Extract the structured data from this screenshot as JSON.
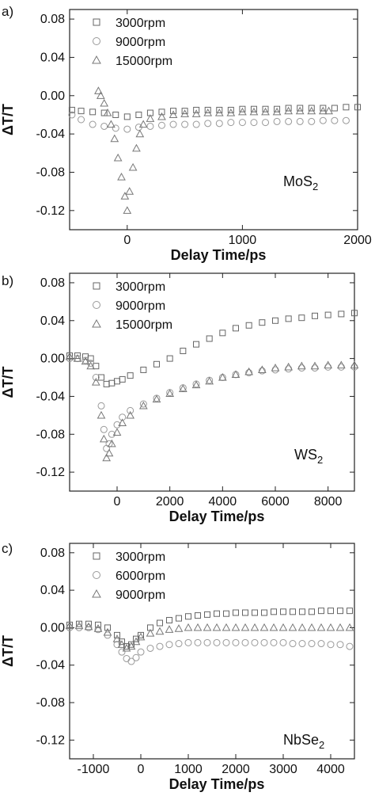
{
  "chart_data": [
    {
      "type": "scatter",
      "panel_label": "a)",
      "material": {
        "base": "MoS",
        "sub": "2"
      },
      "xlabel": "Delay Time/ps",
      "ylabel": "ΔT/T",
      "xlim": [
        -500,
        2000
      ],
      "ylim": [
        -0.14,
        0.09
      ],
      "x_ticks": [
        0,
        1000,
        2000
      ],
      "x_tick_labels": [
        "0",
        "1000",
        "2000"
      ],
      "y_ticks": [
        0.08,
        0.04,
        0.0,
        -0.04,
        -0.08,
        -0.12
      ],
      "y_tick_labels": [
        "0.08",
        "0.04",
        "0.00",
        "-0.04",
        "-0.08",
        "-0.12"
      ],
      "legend_position": "top-left",
      "series": [
        {
          "name": "3000rpm",
          "marker": "square",
          "x": [
            -480,
            -400,
            -300,
            -200,
            -100,
            0,
            100,
            200,
            300,
            400,
            500,
            600,
            700,
            800,
            900,
            1000,
            1100,
            1200,
            1300,
            1400,
            1500,
            1600,
            1700,
            1800,
            1900,
            2000
          ],
          "y": [
            -0.015,
            -0.016,
            -0.017,
            -0.018,
            -0.02,
            -0.022,
            -0.02,
            -0.018,
            -0.017,
            -0.016,
            -0.016,
            -0.015,
            -0.015,
            -0.015,
            -0.015,
            -0.014,
            -0.014,
            -0.014,
            -0.014,
            -0.013,
            -0.013,
            -0.013,
            -0.013,
            -0.013,
            -0.012,
            -0.012
          ]
        },
        {
          "name": "9000rpm",
          "marker": "circle",
          "x": [
            -480,
            -400,
            -300,
            -200,
            -100,
            0,
            100,
            200,
            300,
            400,
            500,
            600,
            700,
            800,
            900,
            1000,
            1100,
            1200,
            1300,
            1400,
            1500,
            1600,
            1700,
            1800,
            1900
          ],
          "y": [
            -0.02,
            -0.025,
            -0.03,
            -0.032,
            -0.034,
            -0.035,
            -0.033,
            -0.032,
            -0.031,
            -0.03,
            -0.03,
            -0.03,
            -0.029,
            -0.029,
            -0.028,
            -0.028,
            -0.028,
            -0.028,
            -0.027,
            -0.027,
            -0.027,
            -0.027,
            -0.026,
            -0.026,
            -0.026
          ]
        },
        {
          "name": "15000rpm",
          "marker": "triangle",
          "x": [
            -250,
            -230,
            -200,
            -170,
            -140,
            -110,
            -80,
            -50,
            -20,
            0,
            20,
            50,
            80,
            110,
            140,
            200,
            300,
            400,
            500,
            600,
            700,
            800,
            900,
            1000,
            1100,
            1200,
            1300,
            1400,
            1500,
            1600,
            1700,
            1750
          ],
          "y": [
            0.005,
            0.0,
            -0.008,
            -0.018,
            -0.03,
            -0.045,
            -0.065,
            -0.085,
            -0.105,
            -0.12,
            -0.1,
            -0.075,
            -0.055,
            -0.04,
            -0.03,
            -0.024,
            -0.022,
            -0.02,
            -0.019,
            -0.019,
            -0.018,
            -0.018,
            -0.018,
            -0.017,
            -0.017,
            -0.017,
            -0.017,
            -0.016,
            -0.016,
            -0.016,
            -0.016,
            -0.016
          ]
        }
      ]
    },
    {
      "type": "scatter",
      "panel_label": "b)",
      "material": {
        "base": "WS",
        "sub": "2"
      },
      "xlabel": "Delay Time/ps",
      "ylabel": "ΔT/T",
      "xlim": [
        -1800,
        9000
      ],
      "ylim": [
        -0.14,
        0.09
      ],
      "x_ticks": [
        0,
        2000,
        4000,
        6000,
        8000
      ],
      "x_tick_labels": [
        "0",
        "2000",
        "4000",
        "6000",
        "8000"
      ],
      "y_ticks": [
        0.08,
        0.04,
        0.0,
        -0.04,
        -0.08,
        -0.12
      ],
      "y_tick_labels": [
        "0.08",
        "0.04",
        "0.00",
        "-0.04",
        "-0.08",
        "-0.12"
      ],
      "legend_position": "top-left",
      "series": [
        {
          "name": "3000rpm",
          "marker": "square",
          "x": [
            -1800,
            -1500,
            -1200,
            -1000,
            -800,
            -600,
            -400,
            -200,
            0,
            200,
            500,
            1000,
            1500,
            2000,
            2500,
            3000,
            3500,
            4000,
            4500,
            5000,
            5500,
            6000,
            6500,
            7000,
            7500,
            8000,
            8500,
            9000
          ],
          "y": [
            0.003,
            0.003,
            0.002,
            0.0,
            -0.008,
            -0.02,
            -0.027,
            -0.026,
            -0.024,
            -0.022,
            -0.018,
            -0.012,
            -0.006,
            0.0,
            0.008,
            0.015,
            0.021,
            0.027,
            0.032,
            0.035,
            0.038,
            0.04,
            0.042,
            0.043,
            0.045,
            0.046,
            0.047,
            0.048
          ]
        },
        {
          "name": "9000rpm",
          "marker": "circle",
          "x": [
            -1800,
            -1500,
            -1200,
            -1000,
            -800,
            -600,
            -500,
            -400,
            -300,
            -200,
            0,
            200,
            500,
            1000,
            1500,
            2000,
            2500,
            3000,
            3500,
            4000,
            4500,
            5000,
            5500,
            6000,
            6500,
            7000,
            7500,
            8000,
            8500,
            9000
          ],
          "y": [
            0.0,
            0.0,
            -0.002,
            -0.005,
            -0.02,
            -0.05,
            -0.075,
            -0.095,
            -0.09,
            -0.08,
            -0.07,
            -0.062,
            -0.055,
            -0.048,
            -0.042,
            -0.036,
            -0.031,
            -0.027,
            -0.023,
            -0.02,
            -0.017,
            -0.015,
            -0.013,
            -0.012,
            -0.011,
            -0.01,
            -0.01,
            -0.009,
            -0.009,
            -0.009
          ]
        },
        {
          "name": "15000rpm",
          "marker": "triangle",
          "x": [
            -1800,
            -1500,
            -1200,
            -1000,
            -800,
            -600,
            -500,
            -400,
            -300,
            -200,
            0,
            200,
            500,
            1000,
            1500,
            2000,
            2500,
            3000,
            3500,
            4000,
            4500,
            5000,
            5500,
            6000,
            6500,
            7000,
            7500,
            8000,
            8500,
            9000
          ],
          "y": [
            0.002,
            0.0,
            -0.003,
            -0.008,
            -0.025,
            -0.06,
            -0.085,
            -0.105,
            -0.1,
            -0.09,
            -0.078,
            -0.068,
            -0.06,
            -0.05,
            -0.043,
            -0.037,
            -0.032,
            -0.028,
            -0.024,
            -0.02,
            -0.017,
            -0.014,
            -0.012,
            -0.01,
            -0.009,
            -0.008,
            -0.008,
            -0.007,
            -0.007,
            -0.007
          ]
        }
      ]
    },
    {
      "type": "scatter",
      "panel_label": "c)",
      "material": {
        "base": "NbSe",
        "sub": "2"
      },
      "xlabel": "Delay Time/ps",
      "ylabel": "ΔT/T",
      "xlim": [
        -1500,
        4500
      ],
      "ylim": [
        -0.14,
        0.09
      ],
      "x_ticks": [
        -1000,
        0,
        1000,
        2000,
        3000,
        4000
      ],
      "x_tick_labels": [
        "-1000",
        "0",
        "1000",
        "2000",
        "3000",
        "4000"
      ],
      "y_ticks": [
        0.08,
        0.04,
        0.0,
        -0.04,
        -0.08,
        -0.12
      ],
      "y_tick_labels": [
        "0.08",
        "0.04",
        "0.00",
        "-0.04",
        "-0.08",
        "-0.12"
      ],
      "legend_position": "top-left",
      "series": [
        {
          "name": "3000rpm",
          "marker": "square",
          "x": [
            -1500,
            -1300,
            -1100,
            -900,
            -700,
            -500,
            -400,
            -300,
            -200,
            -100,
            0,
            200,
            400,
            600,
            800,
            1000,
            1200,
            1400,
            1600,
            1800,
            2000,
            2200,
            2400,
            2600,
            2800,
            3000,
            3200,
            3400,
            3600,
            3800,
            4000,
            4200,
            4400
          ],
          "y": [
            0.003,
            0.004,
            0.004,
            0.003,
            0.0,
            -0.008,
            -0.015,
            -0.02,
            -0.018,
            -0.012,
            -0.008,
            0.0,
            0.005,
            0.008,
            0.01,
            0.012,
            0.013,
            0.014,
            0.015,
            0.015,
            0.016,
            0.016,
            0.016,
            0.016,
            0.017,
            0.017,
            0.017,
            0.017,
            0.017,
            0.018,
            0.018,
            0.018,
            0.018
          ]
        },
        {
          "name": "6000rpm",
          "marker": "circle",
          "x": [
            -1500,
            -1300,
            -1100,
            -900,
            -700,
            -500,
            -400,
            -300,
            -200,
            -100,
            0,
            200,
            400,
            600,
            800,
            1000,
            1200,
            1400,
            1600,
            1800,
            2000,
            2200,
            2400,
            2600,
            2800,
            3000,
            3200,
            3400,
            3600,
            3800,
            4000,
            4200,
            4400
          ],
          "y": [
            0.0,
            0.0,
            0.0,
            -0.002,
            -0.008,
            -0.018,
            -0.026,
            -0.033,
            -0.036,
            -0.032,
            -0.026,
            -0.022,
            -0.02,
            -0.018,
            -0.017,
            -0.016,
            -0.016,
            -0.016,
            -0.016,
            -0.016,
            -0.016,
            -0.016,
            -0.016,
            -0.016,
            -0.016,
            -0.016,
            -0.017,
            -0.017,
            -0.017,
            -0.017,
            -0.018,
            -0.018,
            -0.02
          ]
        },
        {
          "name": "9000rpm",
          "marker": "triangle",
          "x": [
            -1500,
            -1300,
            -1100,
            -900,
            -700,
            -500,
            -400,
            -300,
            -200,
            -100,
            0,
            200,
            400,
            600,
            800,
            1000,
            1200,
            1400,
            1600,
            1800,
            2000,
            2200,
            2400,
            2600,
            2800,
            3000,
            3200,
            3400,
            3600,
            3800,
            4000,
            4200,
            4400
          ],
          "y": [
            0.002,
            0.002,
            0.001,
            -0.001,
            -0.005,
            -0.012,
            -0.018,
            -0.022,
            -0.02,
            -0.015,
            -0.01,
            -0.006,
            -0.004,
            -0.002,
            -0.001,
            0.0,
            0.0,
            0.0,
            0.0,
            0.0,
            0.0,
            0.0,
            0.0,
            0.0,
            0.0,
            0.0,
            0.0,
            0.0,
            0.0,
            0.0,
            0.0,
            0.0,
            0.0
          ]
        }
      ]
    }
  ]
}
